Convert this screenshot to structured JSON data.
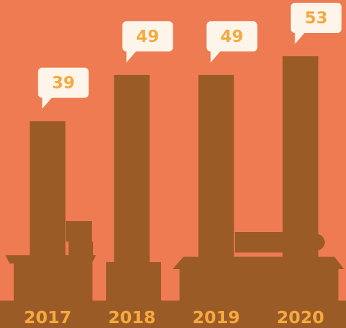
{
  "chart_data": {
    "type": "bar",
    "categories": [
      "2017",
      "2018",
      "2019",
      "2020"
    ],
    "values": [
      39,
      49,
      49,
      53
    ],
    "color": "#9b5b26"
  }
}
